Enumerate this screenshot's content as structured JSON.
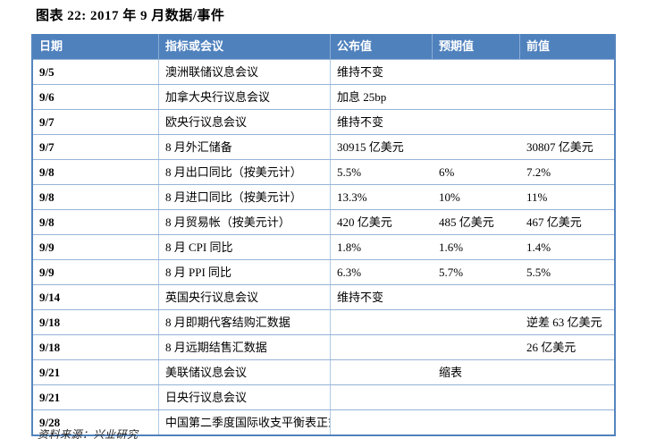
{
  "title": "图表 22: 2017 年 9 月数据/事件",
  "table": {
    "columns": [
      "日期",
      "指标或会议",
      "公布值",
      "预期值",
      "前值"
    ],
    "rows": [
      {
        "date": "9/5",
        "indicator": "澳洲联储议息会议",
        "published": "维持不变",
        "expected": "",
        "previous": ""
      },
      {
        "date": "9/6",
        "indicator": "加拿大央行议息会议",
        "published": "加息 25bp",
        "expected": "",
        "previous": ""
      },
      {
        "date": "9/7",
        "indicator": "欧央行议息会议",
        "published": "维持不变",
        "expected": "",
        "previous": ""
      },
      {
        "date": "9/7",
        "indicator": "8 月外汇储备",
        "published": "30915 亿美元",
        "expected": "",
        "previous": "30807 亿美元"
      },
      {
        "date": "9/8",
        "indicator": "8 月出口同比（按美元计）",
        "published": "5.5%",
        "expected": "6%",
        "previous": "7.2%"
      },
      {
        "date": "9/8",
        "indicator": "8 月进口同比（按美元计）",
        "published": "13.3%",
        "expected": "10%",
        "previous": "11%"
      },
      {
        "date": "9/8",
        "indicator": "8 月贸易帐（按美元计）",
        "published": "420 亿美元",
        "expected": "485 亿美元",
        "previous": "467 亿美元"
      },
      {
        "date": "9/9",
        "indicator": "8 月 CPI 同比",
        "published": "1.8%",
        "expected": "1.6%",
        "previous": "1.4%"
      },
      {
        "date": "9/9",
        "indicator": "8 月 PPI 同比",
        "published": "6.3%",
        "expected": "5.7%",
        "previous": "5.5%"
      },
      {
        "date": "9/14",
        "indicator": "英国央行议息会议",
        "published": "维持不变",
        "expected": "",
        "previous": ""
      },
      {
        "date": "9/18",
        "indicator": "8 月即期代客结购汇数据",
        "published": "",
        "expected": "",
        "previous": "逆差 63 亿美元"
      },
      {
        "date": "9/18",
        "indicator": "8 月远期结售汇数据",
        "published": "",
        "expected": "",
        "previous": "26 亿美元"
      },
      {
        "date": "9/21",
        "indicator": "美联储议息会议",
        "published": "",
        "expected": "缩表",
        "previous": ""
      },
      {
        "date": "9/21",
        "indicator": "日央行议息会议",
        "published": "",
        "expected": "",
        "previous": ""
      },
      {
        "date": "9/28",
        "indicator": "中国第二季度国际收支平衡表正式数",
        "published": "",
        "expected": "",
        "previous": ""
      }
    ]
  },
  "footer": {
    "source": "资料来源：兴业研究"
  },
  "colors": {
    "header_bg": "#4F81BD",
    "header_text": "#FFFFFF",
    "grid_line": "#95B3D7",
    "outer_border": "#5585BE"
  }
}
